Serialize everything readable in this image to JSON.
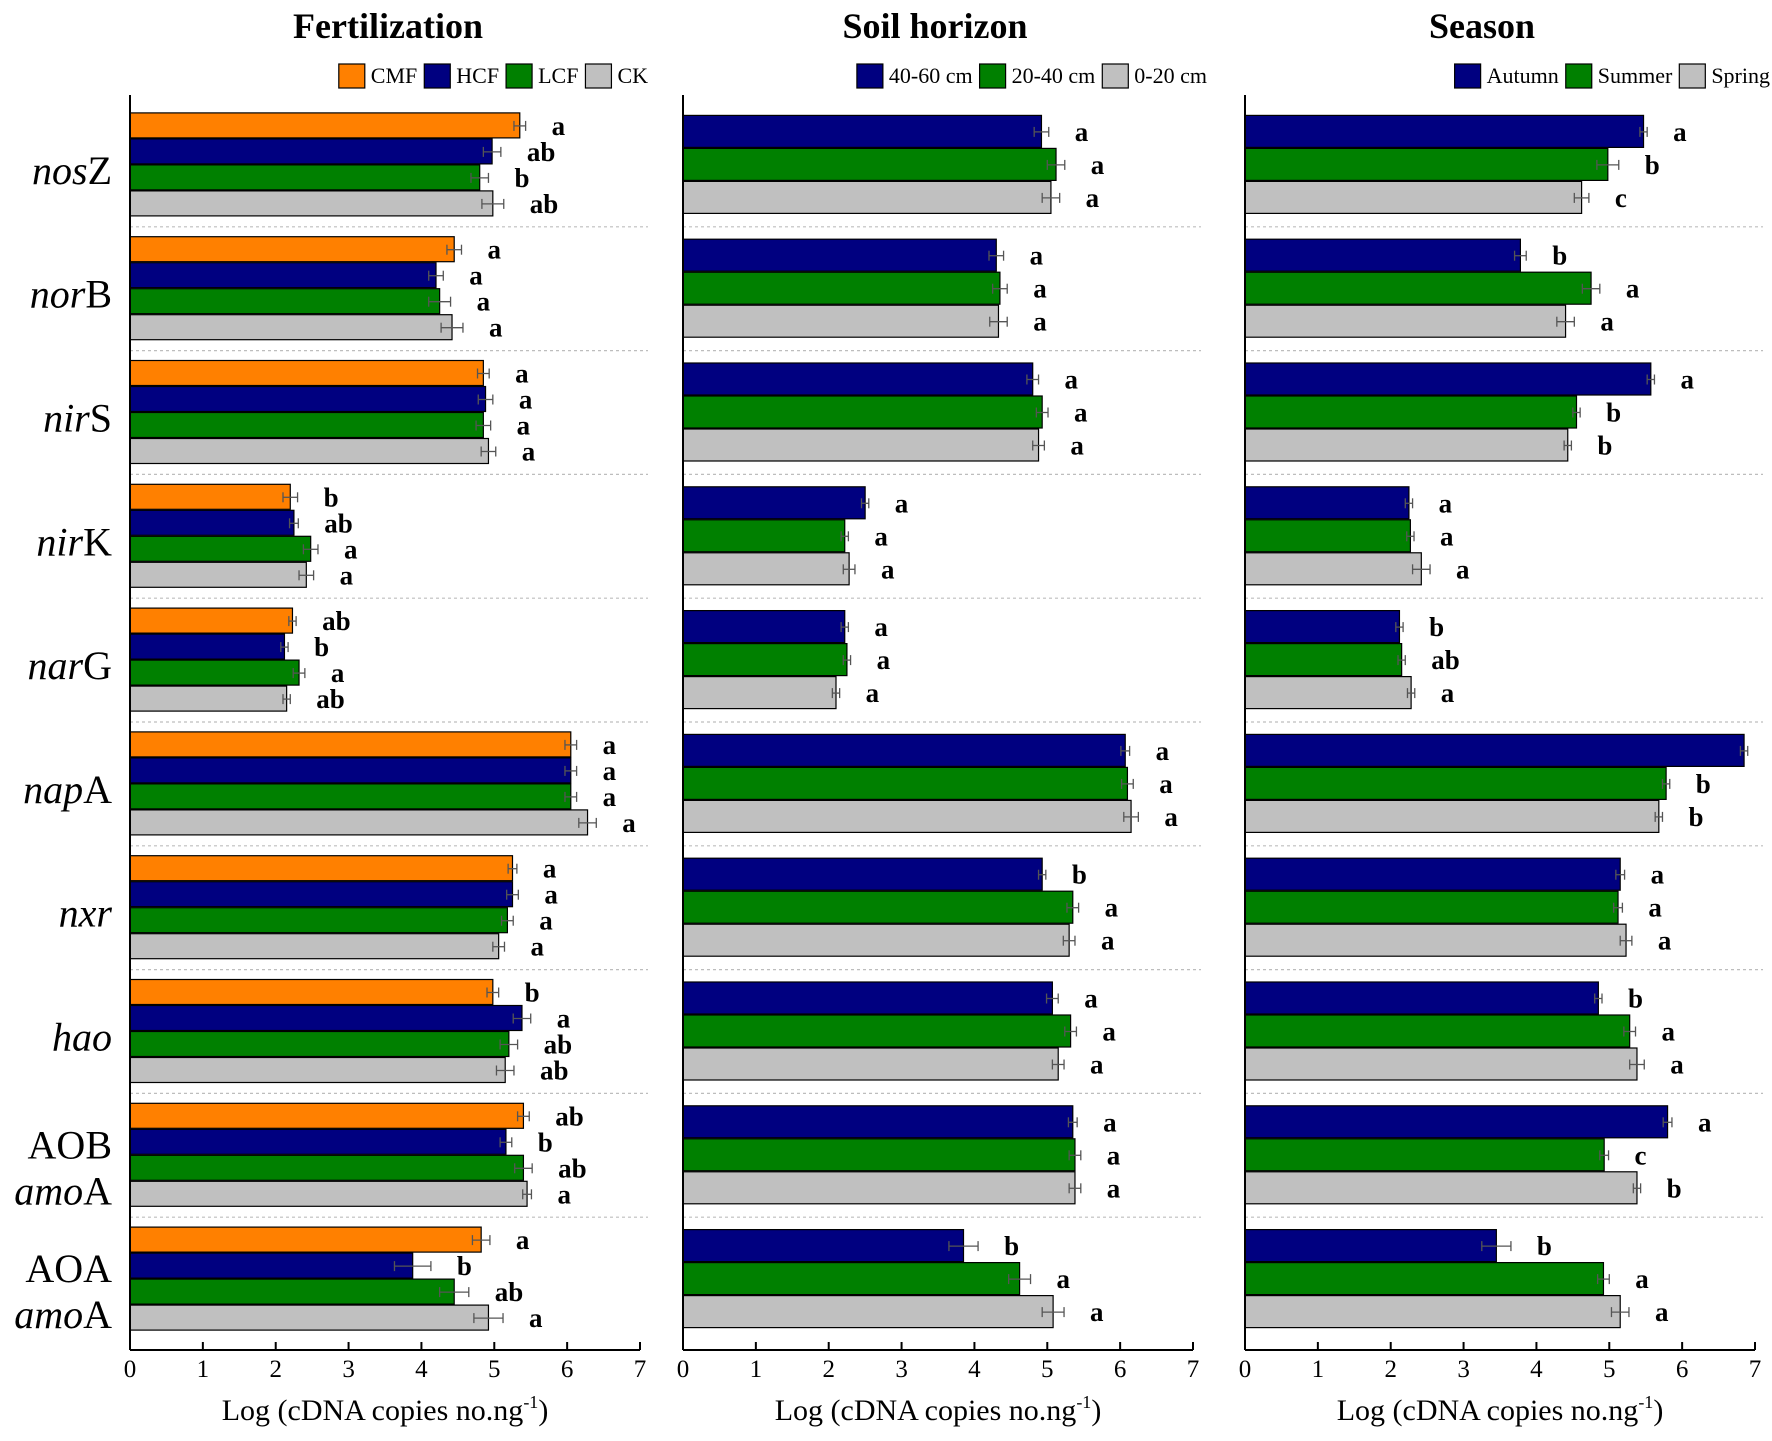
{
  "chart_data": [
    {
      "type": "bar",
      "orientation": "horizontal",
      "title": "Fertilization",
      "xlabel": "Log (cDNA copies no.ng",
      "xlabel_sup": "-1",
      "xlabel_close": ")",
      "xlim": [
        0,
        7
      ],
      "xticks": [
        "0",
        "1",
        "2",
        "3",
        "4",
        "5",
        "6",
        "7"
      ],
      "legend_position": "top-right",
      "categories": [
        {
          "italic": "nos",
          "plain": "Z"
        },
        {
          "italic": "nor",
          "plain": "B"
        },
        {
          "italic": "nir",
          "plain": "S"
        },
        {
          "italic": "nir",
          "plain": "K"
        },
        {
          "italic": "nar",
          "plain": "G"
        },
        {
          "italic": "nap",
          "plain": "A"
        },
        {
          "italic": "nxr",
          "plain": ""
        },
        {
          "italic": "hao",
          "plain": ""
        },
        {
          "line1": "AOB",
          "italic": "amo",
          "plain": "A"
        },
        {
          "line1": "AOA",
          "italic": "amo",
          "plain": "A"
        }
      ],
      "series": [
        {
          "name": "CMF",
          "color": "#ff8000",
          "values": [
            5.35,
            4.45,
            4.85,
            2.2,
            2.23,
            6.05,
            5.25,
            4.98,
            5.4,
            4.82
          ],
          "errors": [
            0.08,
            0.1,
            0.08,
            0.1,
            0.05,
            0.08,
            0.06,
            0.08,
            0.08,
            0.12
          ],
          "labels": [
            "a",
            "a",
            "a",
            "b",
            "ab",
            "a",
            "a",
            "b",
            "ab",
            "a"
          ]
        },
        {
          "name": "HCF",
          "color": "#000080",
          "values": [
            4.97,
            4.2,
            4.88,
            2.25,
            2.12,
            6.05,
            5.25,
            5.38,
            5.16,
            3.88
          ],
          "errors": [
            0.12,
            0.1,
            0.1,
            0.06,
            0.05,
            0.08,
            0.08,
            0.12,
            0.08,
            0.25
          ],
          "labels": [
            "ab",
            "a",
            "a",
            "ab",
            "b",
            "a",
            "a",
            "a",
            "b",
            "b"
          ]
        },
        {
          "name": "LCF",
          "color": "#008000",
          "values": [
            4.8,
            4.25,
            4.85,
            2.48,
            2.32,
            6.05,
            5.18,
            5.2,
            5.4,
            4.45
          ],
          "errors": [
            0.12,
            0.15,
            0.1,
            0.1,
            0.08,
            0.08,
            0.08,
            0.12,
            0.12,
            0.2
          ],
          "labels": [
            "b",
            "a",
            "a",
            "a",
            "a",
            "a",
            "a",
            "ab",
            "ab",
            "ab"
          ]
        },
        {
          "name": "CK",
          "color": "#c0c0c0",
          "values": [
            4.98,
            4.42,
            4.92,
            2.42,
            2.15,
            6.28,
            5.06,
            5.15,
            5.45,
            4.92
          ],
          "errors": [
            0.15,
            0.15,
            0.1,
            0.1,
            0.05,
            0.12,
            0.08,
            0.12,
            0.06,
            0.2
          ],
          "labels": [
            "ab",
            "a",
            "a",
            "a",
            "ab",
            "a",
            "a",
            "ab",
            "a",
            "a"
          ]
        }
      ]
    },
    {
      "type": "bar",
      "orientation": "horizontal",
      "title": "Soil horizon",
      "xlabel": "Log (cDNA copies no.ng",
      "xlabel_sup": "-1",
      "xlabel_close": ")",
      "xlim": [
        0,
        7
      ],
      "xticks": [
        "0",
        "1",
        "2",
        "3",
        "4",
        "5",
        "6",
        "7"
      ],
      "legend_position": "top-right",
      "series": [
        {
          "name": "40-60 cm",
          "color": "#000080",
          "values": [
            4.92,
            4.3,
            4.8,
            2.5,
            2.22,
            6.07,
            4.93,
            5.07,
            5.35,
            3.85
          ],
          "errors": [
            0.1,
            0.1,
            0.08,
            0.05,
            0.05,
            0.06,
            0.05,
            0.08,
            0.06,
            0.2
          ],
          "labels": [
            "a",
            "a",
            "a",
            "a",
            "a",
            "a",
            "b",
            "a",
            "a",
            "b"
          ]
        },
        {
          "name": "20-40 cm",
          "color": "#008000",
          "values": [
            5.12,
            4.35,
            4.93,
            2.22,
            2.25,
            6.1,
            5.35,
            5.32,
            5.38,
            4.62
          ],
          "errors": [
            0.12,
            0.1,
            0.08,
            0.05,
            0.05,
            0.08,
            0.08,
            0.08,
            0.08,
            0.15
          ],
          "labels": [
            "a",
            "a",
            "a",
            "a",
            "a",
            "a",
            "a",
            "a",
            "a",
            "a"
          ]
        },
        {
          "name": "0-20 cm",
          "color": "#c0c0c0",
          "values": [
            5.05,
            4.33,
            4.88,
            2.28,
            2.1,
            6.15,
            5.3,
            5.15,
            5.38,
            5.08
          ],
          "errors": [
            0.12,
            0.12,
            0.08,
            0.08,
            0.05,
            0.1,
            0.08,
            0.08,
            0.08,
            0.15
          ],
          "labels": [
            "a",
            "a",
            "a",
            "a",
            "a",
            "a",
            "a",
            "a",
            "a",
            "a"
          ]
        }
      ]
    },
    {
      "type": "bar",
      "orientation": "horizontal",
      "title": "Season",
      "xlabel": "Log (cDNA copies no.ng",
      "xlabel_sup": "-1",
      "xlabel_close": ")",
      "xlim": [
        0,
        7
      ],
      "xticks": [
        "0",
        "1",
        "2",
        "3",
        "4",
        "5",
        "6",
        "7"
      ],
      "legend_position": "top-right",
      "series": [
        {
          "name": "Autumn",
          "color": "#000080",
          "values": [
            5.47,
            3.78,
            5.57,
            2.25,
            2.12,
            6.85,
            5.15,
            4.85,
            5.8,
            3.45
          ],
          "errors": [
            0.05,
            0.08,
            0.05,
            0.05,
            0.05,
            0.05,
            0.06,
            0.05,
            0.06,
            0.2
          ],
          "labels": [
            "a",
            "b",
            "a",
            "a",
            "b",
            "a",
            "a",
            "b",
            "a",
            "b"
          ]
        },
        {
          "name": "Summer",
          "color": "#008000",
          "values": [
            4.98,
            4.75,
            4.55,
            2.27,
            2.15,
            5.78,
            5.12,
            5.28,
            4.93,
            4.92
          ],
          "errors": [
            0.15,
            0.12,
            0.05,
            0.05,
            0.05,
            0.05,
            0.06,
            0.08,
            0.06,
            0.08
          ],
          "labels": [
            "b",
            "a",
            "b",
            "a",
            "ab",
            "b",
            "a",
            "a",
            "c",
            "a"
          ]
        },
        {
          "name": "Spring",
          "color": "#c0c0c0",
          "values": [
            4.62,
            4.4,
            4.43,
            2.42,
            2.28,
            5.68,
            5.23,
            5.38,
            5.38,
            5.15
          ],
          "errors": [
            0.1,
            0.12,
            0.05,
            0.12,
            0.05,
            0.05,
            0.08,
            0.1,
            0.05,
            0.12
          ],
          "labels": [
            "c",
            "a",
            "b",
            "a",
            "a",
            "b",
            "a",
            "a",
            "b",
            "a"
          ]
        }
      ]
    }
  ]
}
